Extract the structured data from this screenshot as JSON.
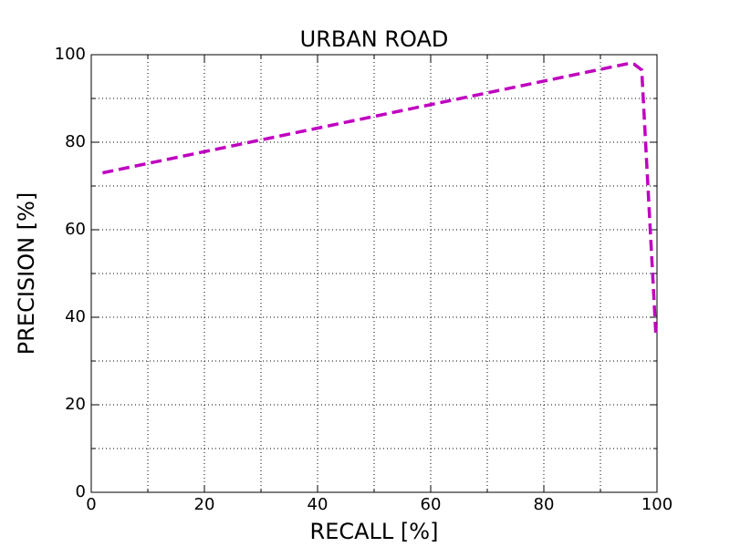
{
  "chart_data": {
    "type": "line",
    "title": "URBAN ROAD",
    "x_label": "RECALL [%]",
    "y_label": "PRECISION [%]",
    "x": [
      2,
      95,
      96,
      97.3,
      99.8
    ],
    "series": [
      {
        "color": "#bf00bf",
        "values": [
          73,
          98,
          97.8,
          96.5,
          36
        ]
      }
    ],
    "xlim": [
      0,
      100
    ],
    "ylim": [
      0,
      100
    ],
    "xticks": [
      0,
      20,
      40,
      60,
      80,
      100
    ],
    "yticks": [
      0,
      20,
      40,
      60,
      80,
      100
    ],
    "xminorticks": [
      10,
      30,
      50,
      70,
      90
    ],
    "yminorticks": [
      10,
      30,
      50,
      70,
      90
    ],
    "grid": true
  }
}
